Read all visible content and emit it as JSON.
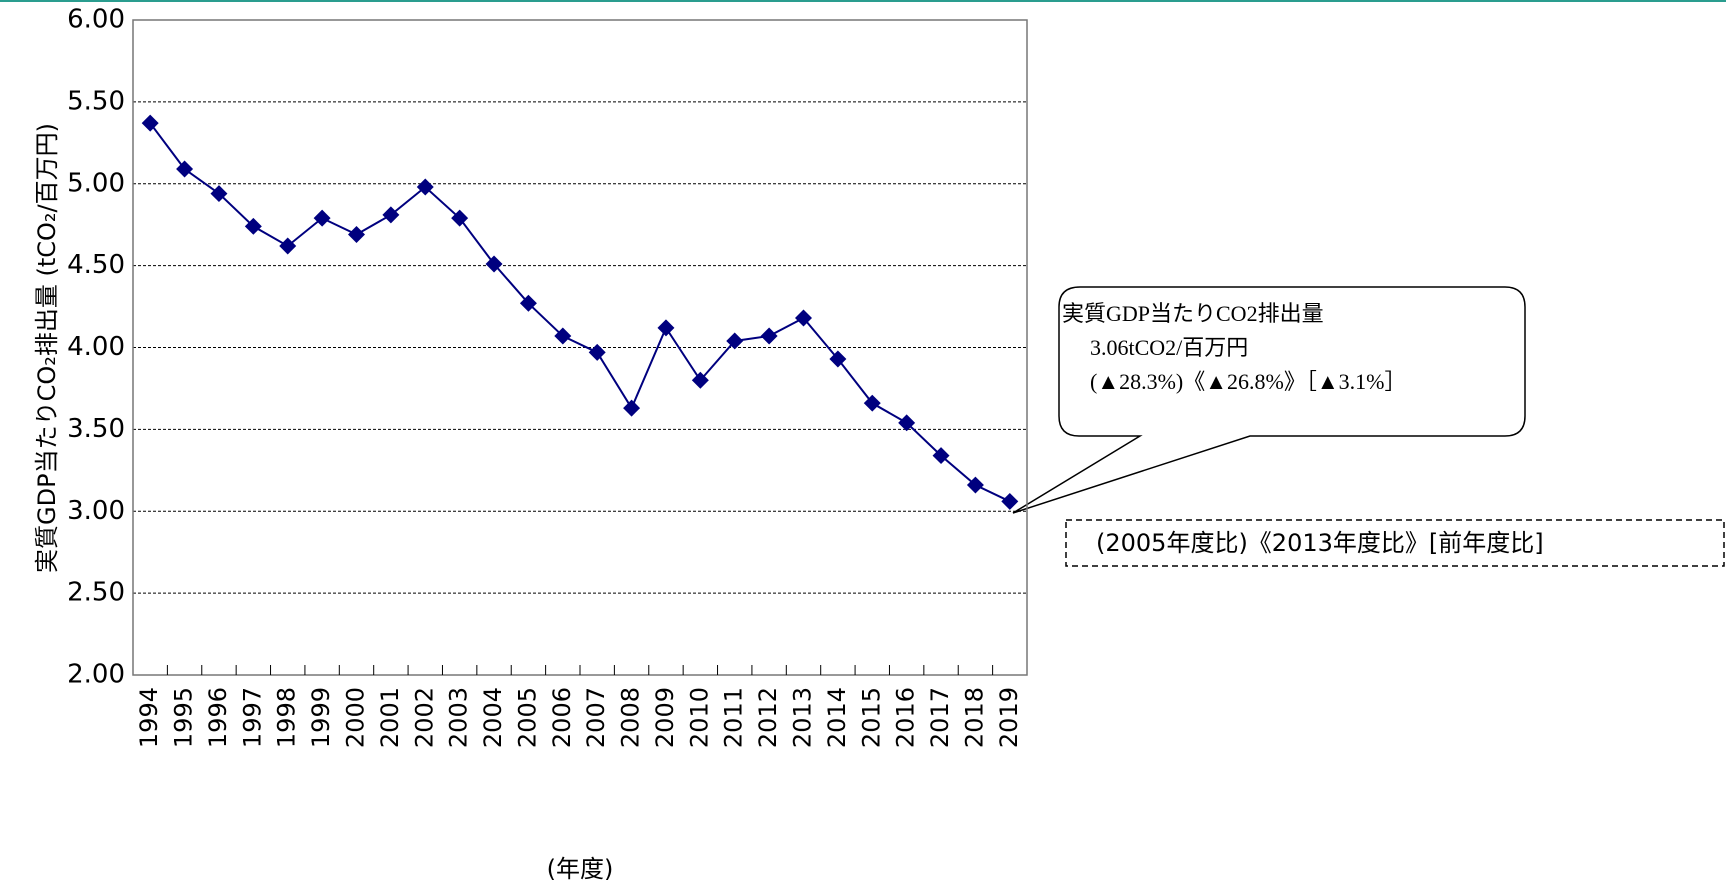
{
  "chart_data": {
    "type": "line",
    "y_label": "実質GDP当たりCO₂排出量 (tCO₂/百万円)",
    "x_label": "(年度)",
    "categories": [
      "1994",
      "1995",
      "1996",
      "1997",
      "1998",
      "1999",
      "2000",
      "2001",
      "2002",
      "2003",
      "2004",
      "2005",
      "2006",
      "2007",
      "2008",
      "2009",
      "2010",
      "2011",
      "2012",
      "2013",
      "2014",
      "2015",
      "2016",
      "2017",
      "2018",
      "2019"
    ],
    "series": [
      {
        "name": "実質GDP当たりCO2排出量",
        "color": "#00007f",
        "values": [
          5.37,
          5.09,
          4.94,
          4.74,
          4.62,
          4.79,
          4.69,
          4.81,
          4.98,
          4.79,
          4.51,
          4.27,
          4.07,
          3.97,
          3.63,
          4.12,
          3.8,
          4.04,
          4.07,
          4.18,
          3.93,
          3.66,
          3.54,
          3.34,
          3.16,
          3.06
        ]
      }
    ],
    "ylim": [
      2,
      6
    ],
    "yticks": [
      {
        "value": 2,
        "label": "2.00"
      },
      {
        "value": 2.5,
        "label": "2.50"
      },
      {
        "value": 3,
        "label": "3.00"
      },
      {
        "value": 3.5,
        "label": "3.50"
      },
      {
        "value": 4,
        "label": "4.00"
      },
      {
        "value": 4.5,
        "label": "4.50"
      },
      {
        "value": 5,
        "label": "5.00"
      },
      {
        "value": 5.5,
        "label": "5.50"
      },
      {
        "value": 6,
        "label": "6.00"
      }
    ],
    "grid": true,
    "callout": [
      "実質GDP当たりCO2排出量",
      "3.06tCO2/百万円",
      "(▲28.3%)《▲26.8%》［▲3.1%］"
    ],
    "note": "(2005年度比)《2013年度比》[前年度比]"
  }
}
